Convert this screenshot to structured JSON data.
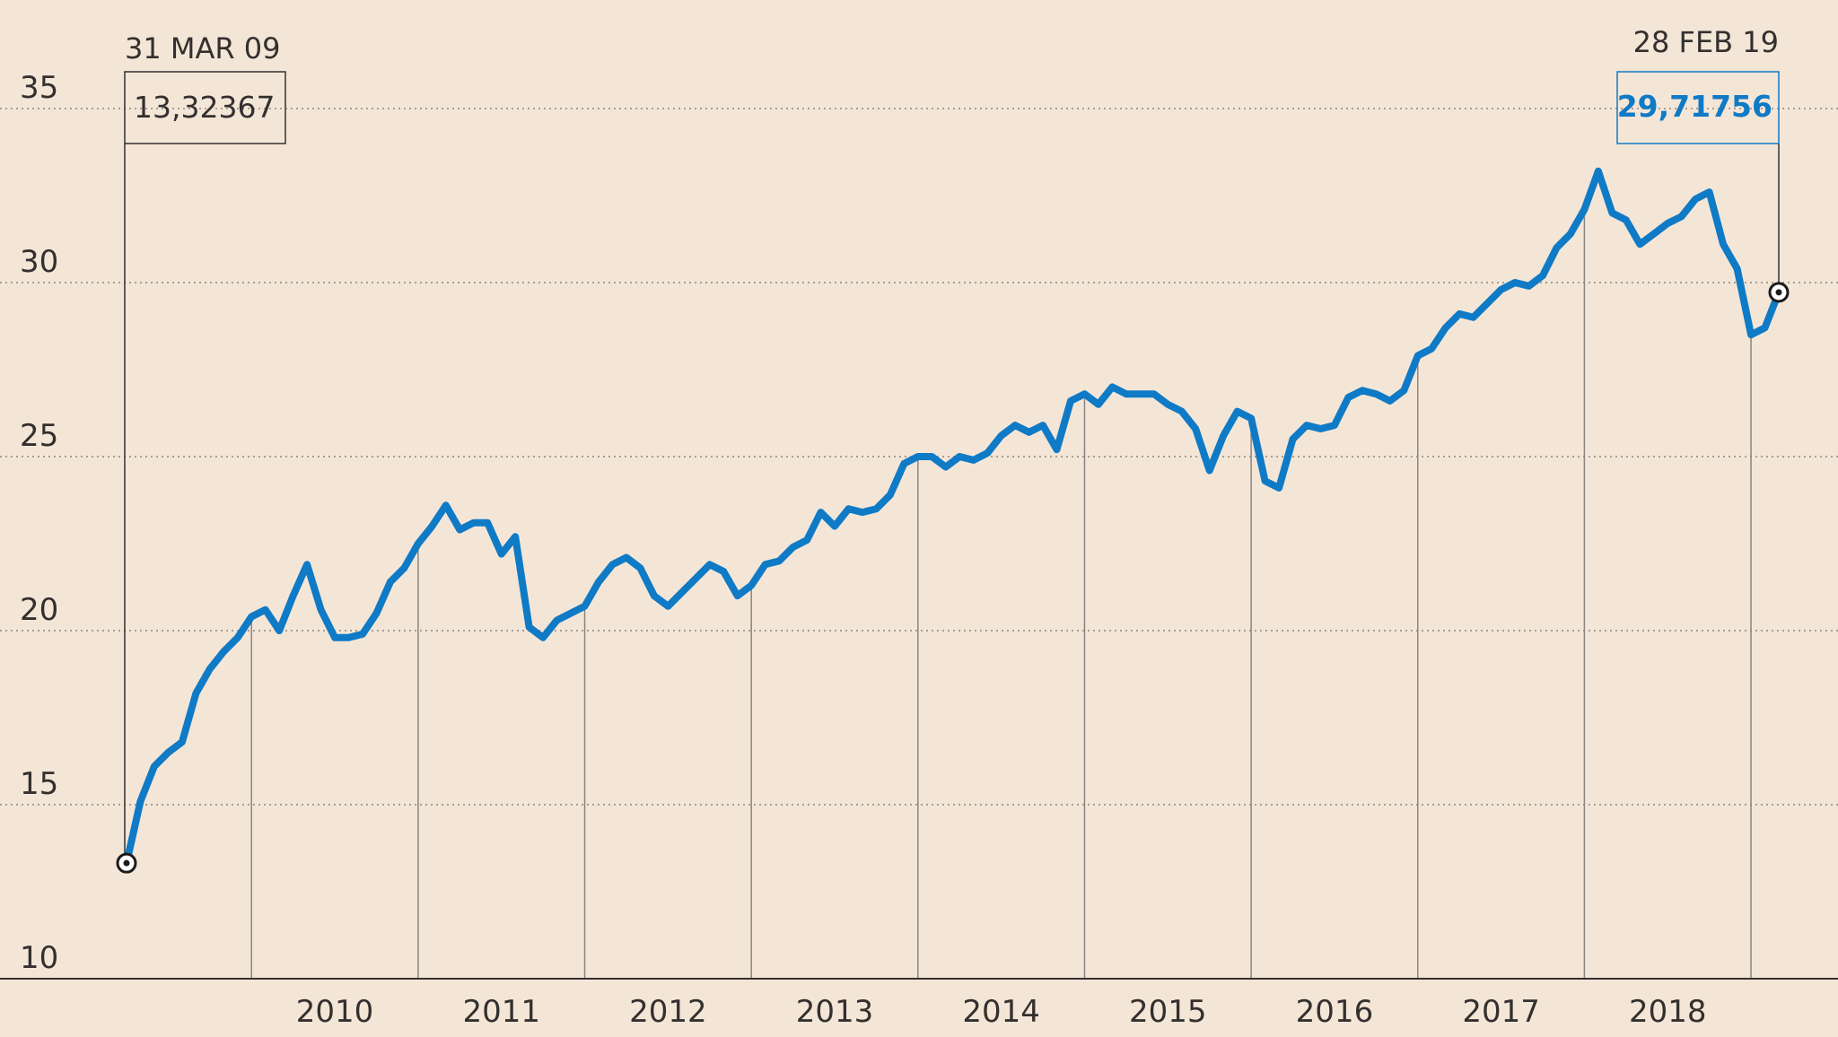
{
  "chart_data": {
    "type": "line",
    "title": "",
    "xlabel": "",
    "ylabel": "",
    "ylim": [
      10,
      35
    ],
    "yticks": [
      10,
      15,
      20,
      25,
      30,
      35
    ],
    "xticks": [
      "2010",
      "2011",
      "2012",
      "2013",
      "2014",
      "2015",
      "2016",
      "2017",
      "2018"
    ],
    "grid": true,
    "colors": {
      "line": "#0f7ac6",
      "background": "#f4e6d7",
      "start_label": "#33302e",
      "end_label": "#0f7ac6"
    },
    "series": [
      {
        "name": "",
        "x": [
          "2009-03",
          "2009-04",
          "2009-05",
          "2009-06",
          "2009-07",
          "2009-08",
          "2009-09",
          "2009-10",
          "2009-11",
          "2009-12",
          "2010-01",
          "2010-02",
          "2010-03",
          "2010-04",
          "2010-05",
          "2010-06",
          "2010-07",
          "2010-08",
          "2010-09",
          "2010-10",
          "2010-11",
          "2010-12",
          "2011-01",
          "2011-02",
          "2011-03",
          "2011-04",
          "2011-05",
          "2011-06",
          "2011-07",
          "2011-08",
          "2011-09",
          "2011-10",
          "2011-11",
          "2011-12",
          "2012-01",
          "2012-02",
          "2012-03",
          "2012-04",
          "2012-05",
          "2012-06",
          "2012-07",
          "2012-08",
          "2012-09",
          "2012-10",
          "2012-11",
          "2012-12",
          "2013-01",
          "2013-02",
          "2013-03",
          "2013-04",
          "2013-05",
          "2013-06",
          "2013-07",
          "2013-08",
          "2013-09",
          "2013-10",
          "2013-11",
          "2013-12",
          "2014-01",
          "2014-02",
          "2014-03",
          "2014-04",
          "2014-05",
          "2014-06",
          "2014-07",
          "2014-08",
          "2014-09",
          "2014-10",
          "2014-11",
          "2014-12",
          "2015-01",
          "2015-02",
          "2015-03",
          "2015-04",
          "2015-05",
          "2015-06",
          "2015-07",
          "2015-08",
          "2015-09",
          "2015-10",
          "2015-11",
          "2015-12",
          "2016-01",
          "2016-02",
          "2016-03",
          "2016-04",
          "2016-05",
          "2016-06",
          "2016-07",
          "2016-08",
          "2016-09",
          "2016-10",
          "2016-11",
          "2016-12",
          "2017-01",
          "2017-02",
          "2017-03",
          "2017-04",
          "2017-05",
          "2017-06",
          "2017-07",
          "2017-08",
          "2017-09",
          "2017-10",
          "2017-11",
          "2017-12",
          "2018-01",
          "2018-02",
          "2018-03",
          "2018-04",
          "2018-05",
          "2018-06",
          "2018-07",
          "2018-08",
          "2018-09",
          "2018-10",
          "2018-11",
          "2018-12",
          "2019-01",
          "2019-02"
        ],
        "values": [
          13.32,
          15.1,
          16.1,
          16.5,
          16.8,
          18.2,
          18.9,
          19.4,
          19.8,
          20.4,
          20.6,
          20.0,
          21.0,
          21.9,
          20.6,
          19.8,
          19.8,
          19.9,
          20.5,
          21.4,
          21.8,
          22.5,
          23.0,
          23.6,
          22.9,
          23.1,
          23.1,
          22.2,
          22.7,
          20.1,
          19.8,
          20.3,
          20.5,
          20.7,
          21.4,
          21.9,
          22.1,
          21.8,
          21.0,
          20.7,
          21.1,
          21.5,
          21.9,
          21.7,
          21.0,
          21.3,
          21.9,
          22.0,
          22.4,
          22.6,
          23.4,
          23.0,
          23.5,
          23.4,
          23.5,
          23.9,
          24.8,
          25.0,
          25.0,
          24.7,
          25.0,
          24.9,
          25.1,
          25.6,
          25.9,
          25.7,
          25.9,
          25.2,
          26.6,
          26.8,
          26.5,
          27.0,
          26.8,
          26.8,
          26.8,
          26.5,
          26.3,
          25.8,
          24.6,
          25.6,
          26.3,
          26.1,
          24.3,
          24.1,
          25.5,
          25.9,
          25.8,
          25.9,
          26.7,
          26.9,
          26.8,
          26.6,
          26.9,
          27.9,
          28.1,
          28.7,
          29.1,
          29.0,
          29.4,
          29.8,
          30.0,
          29.9,
          30.2,
          31.0,
          31.4,
          32.1,
          33.2,
          32.0,
          31.8,
          31.1,
          31.4,
          31.7,
          31.9,
          32.4,
          32.6,
          31.1,
          30.4,
          28.5,
          28.7,
          29.72
        ]
      }
    ],
    "annotations": {
      "start": {
        "date": "31 MAR 09",
        "value": "13,32367"
      },
      "end": {
        "date": "28 FEB 19",
        "value": "29,71756"
      }
    }
  }
}
